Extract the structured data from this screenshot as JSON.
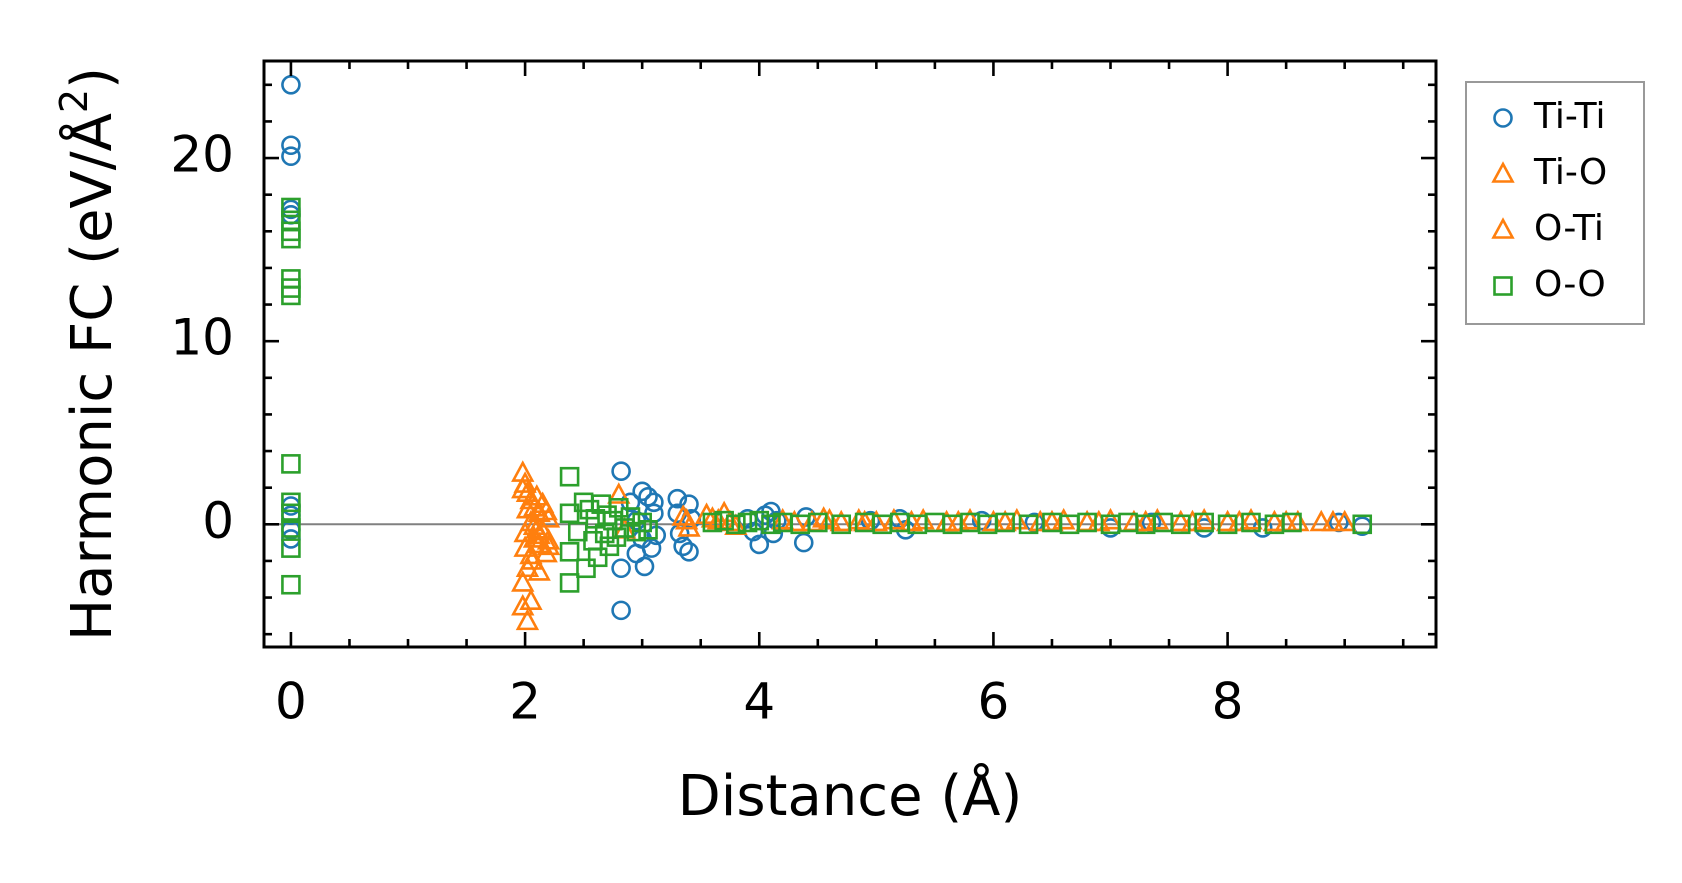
{
  "chart_data": {
    "type": "scatter",
    "title": "",
    "xlabel": "Distance (Å)",
    "ylabel": "Harmonic FC (eV/Å",
    "ylabel_superscript": "2",
    "ylabel_close": ")",
    "xlim": [
      -0.23,
      9.78
    ],
    "ylim": [
      -6.7,
      25.3
    ],
    "x_ticks": [
      0,
      2,
      4,
      6,
      8
    ],
    "y_ticks": [
      0,
      10,
      20
    ],
    "zero_line": true,
    "legend": "outside-right",
    "series": [
      {
        "name": "Ti-Ti",
        "marker": "circle",
        "color": "#1f77b4",
        "points": [
          [
            0,
            24.0
          ],
          [
            0,
            20.7
          ],
          [
            0,
            20.1
          ],
          [
            0,
            17.2
          ],
          [
            0,
            16.9
          ],
          [
            0,
            1.0
          ],
          [
            0,
            0.5
          ],
          [
            0,
            -0.3
          ],
          [
            0,
            -0.8
          ],
          [
            2.82,
            2.9
          ],
          [
            2.82,
            -2.4
          ],
          [
            2.82,
            -4.7
          ],
          [
            2.9,
            1.2
          ],
          [
            2.95,
            0.2
          ],
          [
            2.95,
            -1.6
          ],
          [
            3.0,
            1.8
          ],
          [
            3.0,
            -0.8
          ],
          [
            3.02,
            -2.3
          ],
          [
            3.05,
            1.5
          ],
          [
            3.08,
            -1.3
          ],
          [
            3.1,
            1.2
          ],
          [
            3.1,
            0.6
          ],
          [
            3.12,
            -0.6
          ],
          [
            3.3,
            1.4
          ],
          [
            3.3,
            0.6
          ],
          [
            3.32,
            -0.5
          ],
          [
            3.35,
            -1.2
          ],
          [
            3.4,
            1.1
          ],
          [
            3.4,
            -1.5
          ],
          [
            3.42,
            0.3
          ],
          [
            3.9,
            0.3
          ],
          [
            3.95,
            -0.4
          ],
          [
            4.0,
            -1.1
          ],
          [
            4.05,
            0.5
          ],
          [
            4.1,
            0.7
          ],
          [
            4.12,
            -0.5
          ],
          [
            4.15,
            0.2
          ],
          [
            4.38,
            -1.0
          ],
          [
            4.4,
            0.4
          ],
          [
            4.95,
            0.2
          ],
          [
            5.2,
            0.3
          ],
          [
            5.25,
            -0.3
          ],
          [
            5.9,
            0.2
          ],
          [
            6.35,
            0.1
          ],
          [
            7.0,
            -0.2
          ],
          [
            7.35,
            0.1
          ],
          [
            7.8,
            -0.2
          ],
          [
            8.3,
            -0.2
          ],
          [
            8.95,
            0.1
          ],
          [
            9.15,
            -0.1
          ]
        ]
      },
      {
        "name": "Ti-O",
        "marker": "triangle",
        "color": "#ff7f0e",
        "points": [
          [
            1.98,
            2.8
          ],
          [
            2.0,
            2.2
          ],
          [
            2.02,
            1.7
          ],
          [
            2.05,
            1.3
          ],
          [
            2.08,
            0.9
          ],
          [
            2.1,
            1.5
          ],
          [
            2.12,
            0.6
          ],
          [
            2.15,
            1.1
          ],
          [
            2.05,
            0.1
          ],
          [
            2.1,
            -0.3
          ],
          [
            2.0,
            -0.5
          ],
          [
            2.08,
            -0.8
          ],
          [
            2.15,
            -0.4
          ],
          [
            2.2,
            0.3
          ],
          [
            2.0,
            -1.3
          ],
          [
            2.05,
            -1.7
          ],
          [
            2.12,
            -1.1
          ],
          [
            2.18,
            -1.6
          ],
          [
            2.2,
            -0.9
          ],
          [
            2.02,
            -2.4
          ],
          [
            1.98,
            -3.2
          ],
          [
            1.98,
            -4.5
          ],
          [
            2.05,
            -4.2
          ],
          [
            2.02,
            -5.3
          ],
          [
            2.8,
            1.6
          ],
          [
            2.85,
            -0.3
          ],
          [
            3.35,
            0.4
          ],
          [
            3.4,
            -0.2
          ],
          [
            3.55,
            0.5
          ],
          [
            3.65,
            0.2
          ],
          [
            3.7,
            0.6
          ],
          [
            3.8,
            -0.1
          ],
          [
            4.2,
            0.2
          ],
          [
            4.45,
            0.1
          ],
          [
            4.55,
            0.3
          ],
          [
            4.7,
            0.1
          ],
          [
            4.85,
            0.2
          ],
          [
            5.0,
            0.1
          ],
          [
            5.15,
            0.2
          ],
          [
            5.4,
            0.2
          ],
          [
            5.6,
            0.1
          ],
          [
            5.8,
            0.2
          ],
          [
            6.0,
            0.1
          ],
          [
            6.2,
            0.2
          ],
          [
            6.4,
            0.1
          ],
          [
            6.6,
            0.2
          ],
          [
            6.8,
            0.1
          ],
          [
            7.0,
            0.2
          ],
          [
            7.2,
            0.1
          ],
          [
            7.4,
            0.2
          ],
          [
            7.6,
            0.1
          ],
          [
            7.8,
            0.2
          ],
          [
            8.0,
            0.1
          ],
          [
            8.2,
            0.2
          ],
          [
            8.4,
            0.1
          ],
          [
            8.6,
            0.1
          ],
          [
            8.8,
            0.1
          ],
          [
            9.0,
            0.1
          ]
        ]
      },
      {
        "name": "O-Ti",
        "marker": "triangle",
        "color": "#ff7f0e",
        "points": [
          [
            1.98,
            1.9
          ],
          [
            2.02,
            0.8
          ],
          [
            2.08,
            -0.1
          ],
          [
            2.12,
            -0.6
          ],
          [
            2.2,
            -1.2
          ],
          [
            2.18,
            0.7
          ],
          [
            2.06,
            -2.0
          ],
          [
            2.12,
            -2.6
          ],
          [
            3.38,
            0.2
          ],
          [
            3.6,
            0.3
          ],
          [
            3.75,
            0.1
          ],
          [
            4.3,
            0.1
          ],
          [
            4.6,
            0.2
          ],
          [
            4.9,
            0.1
          ],
          [
            5.3,
            0.1
          ],
          [
            5.7,
            0.1
          ],
          [
            6.1,
            0.1
          ],
          [
            6.5,
            0.1
          ],
          [
            6.9,
            0.1
          ],
          [
            7.3,
            0.1
          ],
          [
            7.7,
            0.1
          ],
          [
            8.1,
            0.1
          ],
          [
            8.5,
            0.1
          ],
          [
            8.9,
            0.1
          ]
        ]
      },
      {
        "name": "O-O",
        "marker": "square",
        "color": "#2ca02c",
        "points": [
          [
            0,
            17.3
          ],
          [
            0,
            16.6
          ],
          [
            0,
            16.0
          ],
          [
            0,
            15.6
          ],
          [
            0,
            13.4
          ],
          [
            0,
            12.9
          ],
          [
            0,
            12.5
          ],
          [
            0,
            3.3
          ],
          [
            0,
            1.2
          ],
          [
            0,
            0.6
          ],
          [
            0,
            -0.2
          ],
          [
            0,
            -1.3
          ],
          [
            0,
            -3.3
          ],
          [
            2.38,
            2.6
          ],
          [
            2.38,
            0.6
          ],
          [
            2.38,
            -1.5
          ],
          [
            2.38,
            -3.2
          ],
          [
            2.45,
            -0.4
          ],
          [
            2.5,
            1.2
          ],
          [
            2.52,
            -2.4
          ],
          [
            2.55,
            0.8
          ],
          [
            2.58,
            -0.9
          ],
          [
            2.6,
            0.3
          ],
          [
            2.62,
            -1.8
          ],
          [
            2.65,
            1.1
          ],
          [
            2.68,
            -0.5
          ],
          [
            2.7,
            0.5
          ],
          [
            2.72,
            -1.2
          ],
          [
            2.75,
            0.2
          ],
          [
            2.78,
            -0.7
          ],
          [
            2.8,
            0.9
          ],
          [
            2.85,
            -0.2
          ],
          [
            2.9,
            0.4
          ],
          [
            2.95,
            -0.4
          ],
          [
            3.0,
            0.1
          ],
          [
            3.05,
            -0.3
          ],
          [
            3.6,
            0.1
          ],
          [
            3.7,
            0.2
          ],
          [
            3.8,
            0.0
          ],
          [
            3.9,
            0.1
          ],
          [
            4.0,
            0.2
          ],
          [
            4.1,
            0.0
          ],
          [
            4.2,
            0.1
          ],
          [
            4.35,
            0.0
          ],
          [
            4.5,
            0.1
          ],
          [
            4.7,
            0.0
          ],
          [
            4.9,
            0.1
          ],
          [
            5.05,
            0.0
          ],
          [
            5.2,
            0.1
          ],
          [
            5.35,
            0.0
          ],
          [
            5.5,
            0.1
          ],
          [
            5.65,
            0.0
          ],
          [
            5.8,
            0.1
          ],
          [
            5.95,
            0.0
          ],
          [
            6.1,
            0.1
          ],
          [
            6.3,
            0.0
          ],
          [
            6.5,
            0.1
          ],
          [
            6.65,
            0.0
          ],
          [
            6.8,
            0.1
          ],
          [
            7.0,
            0.0
          ],
          [
            7.15,
            0.1
          ],
          [
            7.3,
            0.0
          ],
          [
            7.45,
            0.1
          ],
          [
            7.6,
            0.0
          ],
          [
            7.8,
            0.1
          ],
          [
            8.0,
            0.0
          ],
          [
            8.2,
            0.1
          ],
          [
            8.4,
            0.0
          ],
          [
            8.55,
            0.1
          ],
          [
            9.15,
            0.0
          ]
        ]
      }
    ]
  }
}
